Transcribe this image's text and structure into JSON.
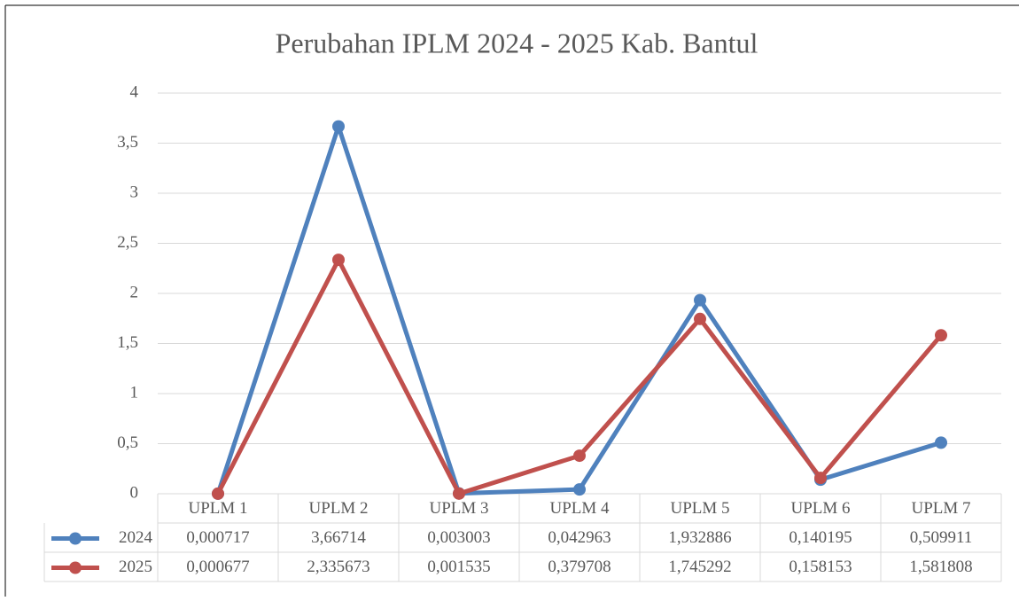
{
  "chart_data": {
    "type": "line",
    "title": "Perubahan IPLM 2024 - 2025 Kab. Bantul",
    "categories": [
      "UPLM 1",
      "UPLM 2",
      "UPLM 3",
      "UPLM 4",
      "UPLM 5",
      "UPLM 6",
      "UPLM 7"
    ],
    "series": [
      {
        "name": "2024",
        "color": "#4f81bd",
        "values": [
          0.000717,
          3.66714,
          0.003003,
          0.042963,
          1.932886,
          0.140195,
          0.509911
        ],
        "value_labels": [
          "0,000717",
          "3,66714",
          "0,003003",
          "0,042963",
          "1,932886",
          "0,140195",
          "0,509911"
        ]
      },
      {
        "name": "2025",
        "color": "#c0504d",
        "values": [
          0.000677,
          2.335673,
          0.001535,
          0.379708,
          1.745292,
          0.158153,
          1.581808
        ],
        "value_labels": [
          "0,000677",
          "2,335673",
          "0,001535",
          "0,379708",
          "1,745292",
          "0,158153",
          "1,581808"
        ]
      }
    ],
    "ylim": [
      0,
      4
    ],
    "yticks": [
      0,
      {
        "value": 0.5,
        "label": "0,5"
      },
      1,
      {
        "value": 1.5,
        "label": "1,5"
      },
      2,
      {
        "value": 2.5,
        "label": "2,5"
      },
      3,
      {
        "value": 3.5,
        "label": "3,5"
      },
      4
    ],
    "grid": true,
    "data_table": true
  }
}
